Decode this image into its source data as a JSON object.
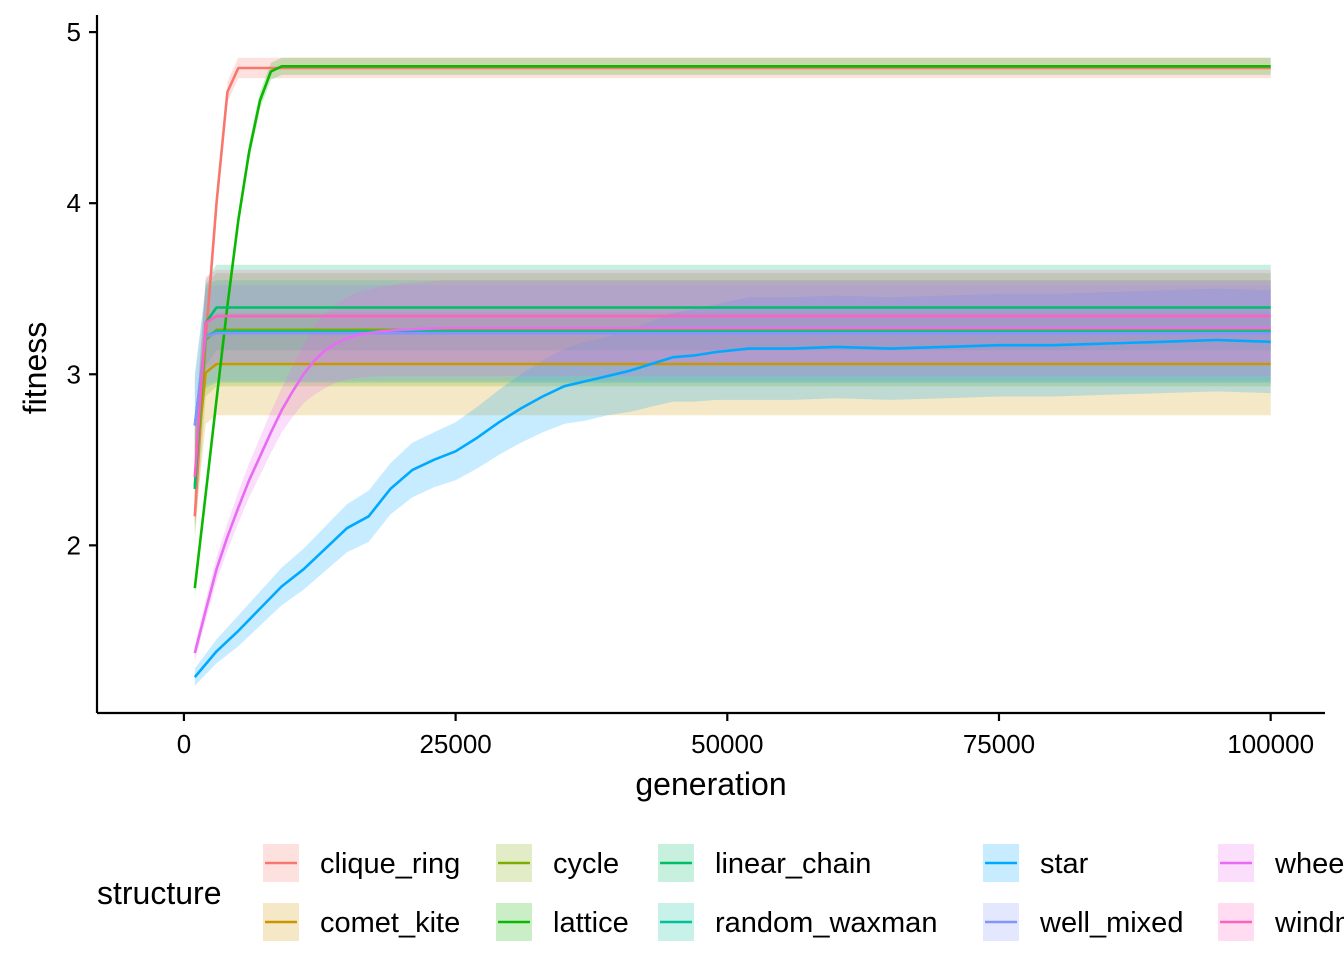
{
  "chart_data": {
    "type": "line",
    "xlabel": "generation",
    "ylabel": "fitness",
    "xlim": [
      -8000,
      105000
    ],
    "ylim": [
      1.02,
      5.1
    ],
    "xticks": [
      0,
      25000,
      50000,
      75000,
      100000
    ],
    "xtick_labels": [
      "0",
      "25000",
      "50000",
      "75000",
      "100000"
    ],
    "yticks": [
      2,
      3,
      4,
      5
    ],
    "ytick_labels": [
      "2",
      "3",
      "4",
      "5"
    ],
    "grid": false,
    "legend_title": "structure",
    "legend_position": "bottom",
    "series": [
      {
        "name": "clique_ring",
        "color": "#F8766D",
        "x": [
          1000,
          2000,
          3000,
          4000,
          5000,
          6000,
          8000,
          100000
        ],
        "y": [
          2.17,
          3.2,
          4.0,
          4.65,
          4.79,
          4.79,
          4.79,
          4.79
        ],
        "band": [
          0.06,
          0.06,
          0.06,
          0.06,
          0.06,
          0.06,
          0.06,
          0.06
        ]
      },
      {
        "name": "comet_kite",
        "color": "#CD9600",
        "x": [
          1000,
          2000,
          3000,
          100000
        ],
        "y": [
          2.4,
          3.01,
          3.06,
          3.06
        ],
        "band": [
          0.3,
          0.3,
          0.3,
          0.3
        ]
      },
      {
        "name": "cycle",
        "color": "#7CAE00",
        "x": [
          1000,
          2000,
          3000,
          100000
        ],
        "y": [
          2.35,
          3.2,
          3.26,
          3.26
        ],
        "band": [
          0.33,
          0.33,
          0.33,
          0.33
        ]
      },
      {
        "name": "lattice",
        "color": "#0CB702",
        "x": [
          1000,
          2000,
          3000,
          4000,
          5000,
          6000,
          7000,
          8000,
          9000,
          100000
        ],
        "y": [
          1.75,
          2.3,
          2.85,
          3.4,
          3.9,
          4.3,
          4.6,
          4.77,
          4.8,
          4.8
        ],
        "band": [
          0.05,
          0.05,
          0.05,
          0.05,
          0.05,
          0.05,
          0.05,
          0.05,
          0.05,
          0.05
        ]
      },
      {
        "name": "linear_chain",
        "color": "#00BE67",
        "x": [
          1000,
          2000,
          3000,
          100000
        ],
        "y": [
          2.33,
          3.3,
          3.39,
          3.39
        ],
        "band": [
          0.25,
          0.25,
          0.25,
          0.25
        ]
      },
      {
        "name": "random_waxman",
        "color": "#00C19A",
        "x": [
          1000,
          2000,
          3000,
          100000
        ],
        "y": [
          2.7,
          3.22,
          3.25,
          3.25
        ],
        "band": [
          0.3,
          0.3,
          0.3,
          0.3
        ]
      },
      {
        "name": "star",
        "color": "#00A9FF",
        "x": [
          1000,
          3000,
          5000,
          7000,
          9000,
          11000,
          13000,
          15000,
          17000,
          19000,
          21000,
          23000,
          25000,
          27000,
          29000,
          31000,
          33000,
          35000,
          37000,
          39000,
          41000,
          43000,
          45000,
          47000,
          49000,
          52000,
          56000,
          60000,
          65000,
          70000,
          75000,
          80000,
          85000,
          90000,
          95000,
          100000
        ],
        "y": [
          1.23,
          1.38,
          1.5,
          1.63,
          1.76,
          1.86,
          1.98,
          2.1,
          2.17,
          2.33,
          2.44,
          2.5,
          2.55,
          2.63,
          2.72,
          2.8,
          2.87,
          2.93,
          2.96,
          2.99,
          3.02,
          3.06,
          3.1,
          3.11,
          3.13,
          3.15,
          3.15,
          3.16,
          3.15,
          3.16,
          3.17,
          3.17,
          3.18,
          3.19,
          3.2,
          3.19
        ],
        "band": [
          0.05,
          0.07,
          0.09,
          0.1,
          0.11,
          0.12,
          0.13,
          0.14,
          0.15,
          0.15,
          0.16,
          0.16,
          0.17,
          0.18,
          0.19,
          0.2,
          0.21,
          0.22,
          0.23,
          0.23,
          0.24,
          0.25,
          0.26,
          0.27,
          0.28,
          0.3,
          0.3,
          0.3,
          0.3,
          0.3,
          0.3,
          0.3,
          0.3,
          0.3,
          0.3,
          0.3
        ]
      },
      {
        "name": "well_mixed",
        "color": "#8494FF",
        "x": [
          1000,
          2000,
          3000,
          100000
        ],
        "y": [
          2.7,
          3.22,
          3.24,
          3.24
        ],
        "band": [
          0.28,
          0.28,
          0.28,
          0.28
        ]
      },
      {
        "name": "wheel",
        "color": "#E76BF3",
        "x": [
          1000,
          2000,
          3000,
          4000,
          5000,
          6000,
          7000,
          8000,
          9000,
          10000,
          11000,
          12000,
          13000,
          14000,
          15000,
          16000,
          18000,
          20000,
          24000,
          28000,
          100000
        ],
        "y": [
          1.37,
          1.62,
          1.86,
          2.05,
          2.22,
          2.38,
          2.52,
          2.66,
          2.79,
          2.9,
          3.0,
          3.08,
          3.14,
          3.18,
          3.21,
          3.23,
          3.25,
          3.26,
          3.27,
          3.27,
          3.27
        ],
        "band": [
          0.05,
          0.06,
          0.07,
          0.08,
          0.09,
          0.1,
          0.11,
          0.12,
          0.13,
          0.15,
          0.17,
          0.2,
          0.22,
          0.23,
          0.24,
          0.25,
          0.26,
          0.27,
          0.28,
          0.28,
          0.28
        ]
      },
      {
        "name": "windmill",
        "color": "#FF61C3",
        "x": [
          1000,
          2000,
          3000,
          100000
        ],
        "y": [
          2.4,
          3.3,
          3.34,
          3.34
        ],
        "band": [
          0.27,
          0.27,
          0.27,
          0.27
        ]
      }
    ]
  }
}
